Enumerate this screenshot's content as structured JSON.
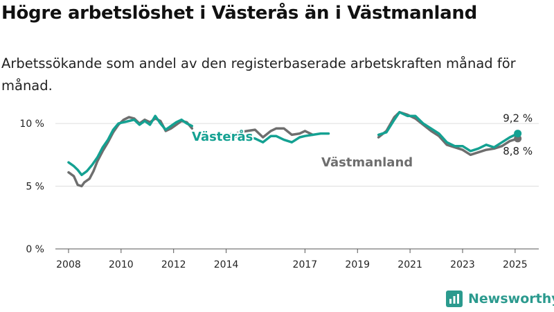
{
  "title": "Högre arbetslöshet i Västerås än i Västmanland",
  "subtitle": "Arbetssökande som andel av den registerbaserade arbetskraften månad för månad.",
  "brand": {
    "name": "Newsworthy",
    "icon": "bar-chart-logo-icon",
    "color": "#2b9a8e"
  },
  "chart_data": {
    "type": "line",
    "title": "",
    "xlabel": "",
    "ylabel": "",
    "ylim": [
      0,
      11
    ],
    "xlim": [
      2007.5,
      2025.9
    ],
    "yticks": [
      {
        "value": 0,
        "label": "0 %"
      },
      {
        "value": 5,
        "label": "5 %"
      },
      {
        "value": 10,
        "label": "10 %"
      }
    ],
    "xticks": [
      {
        "value": 2008,
        "label": "2008"
      },
      {
        "value": 2010,
        "label": "2010"
      },
      {
        "value": 2012,
        "label": "2012"
      },
      {
        "value": 2014,
        "label": "2014"
      },
      {
        "value": 2017,
        "label": "2017"
      },
      {
        "value": 2019,
        "label": "2019"
      },
      {
        "value": 2021,
        "label": "2021"
      },
      {
        "value": 2023,
        "label": "2023"
      },
      {
        "value": 2025,
        "label": "2025"
      }
    ],
    "grid": "horizontal",
    "series": [
      {
        "name": "Västmanland",
        "color": "#6e6e6e",
        "end_label": "8,8 %",
        "points": [
          [
            2008.0,
            6.1
          ],
          [
            2008.2,
            5.8
          ],
          [
            2008.35,
            5.1
          ],
          [
            2008.5,
            5.0
          ],
          [
            2008.6,
            5.3
          ],
          [
            2008.8,
            5.6
          ],
          [
            2008.95,
            6.2
          ],
          [
            2009.1,
            7.0
          ],
          [
            2009.3,
            7.8
          ],
          [
            2009.5,
            8.5
          ],
          [
            2009.7,
            9.3
          ],
          [
            2009.9,
            9.9
          ],
          [
            2010.1,
            10.3
          ],
          [
            2010.3,
            10.5
          ],
          [
            2010.5,
            10.4
          ],
          [
            2010.7,
            10.0
          ],
          [
            2010.9,
            10.3
          ],
          [
            2011.1,
            10.1
          ],
          [
            2011.3,
            10.4
          ],
          [
            2011.5,
            10.2
          ],
          [
            2011.7,
            9.4
          ],
          [
            2011.9,
            9.6
          ],
          [
            2012.1,
            9.9
          ],
          [
            2012.3,
            10.2
          ],
          [
            2012.5,
            10.1
          ],
          [
            2012.7,
            9.6
          ],
          [
            2014.2,
            9.0
          ],
          [
            2014.5,
            9.3
          ],
          [
            2014.8,
            9.4
          ],
          [
            2015.1,
            9.5
          ],
          [
            2015.4,
            8.9
          ],
          [
            2015.7,
            9.4
          ],
          [
            2015.9,
            9.6
          ],
          [
            2016.2,
            9.6
          ],
          [
            2016.5,
            9.1
          ],
          [
            2016.8,
            9.2
          ],
          [
            2017.0,
            9.4
          ],
          [
            2017.3,
            9.1
          ],
          [
            2019.8,
            8.9
          ],
          [
            2020.1,
            9.4
          ],
          [
            2020.4,
            10.5
          ],
          [
            2020.6,
            10.9
          ],
          [
            2020.9,
            10.7
          ],
          [
            2021.2,
            10.4
          ],
          [
            2021.5,
            9.9
          ],
          [
            2021.8,
            9.4
          ],
          [
            2022.1,
            9.0
          ],
          [
            2022.4,
            8.3
          ],
          [
            2022.7,
            8.1
          ],
          [
            2023.0,
            7.9
          ],
          [
            2023.3,
            7.5
          ],
          [
            2023.6,
            7.7
          ],
          [
            2023.9,
            7.9
          ],
          [
            2024.2,
            8.0
          ],
          [
            2024.5,
            8.2
          ],
          [
            2024.8,
            8.6
          ],
          [
            2025.1,
            8.8
          ]
        ]
      },
      {
        "name": "Västerås",
        "color": "#14a192",
        "end_label": "9,2 %",
        "points": [
          [
            2008.0,
            6.9
          ],
          [
            2008.2,
            6.6
          ],
          [
            2008.35,
            6.3
          ],
          [
            2008.5,
            5.9
          ],
          [
            2008.7,
            6.2
          ],
          [
            2008.9,
            6.7
          ],
          [
            2009.1,
            7.3
          ],
          [
            2009.3,
            8.1
          ],
          [
            2009.5,
            8.7
          ],
          [
            2009.7,
            9.5
          ],
          [
            2009.9,
            10.0
          ],
          [
            2010.1,
            10.1
          ],
          [
            2010.3,
            10.2
          ],
          [
            2010.5,
            10.3
          ],
          [
            2010.7,
            9.9
          ],
          [
            2010.9,
            10.2
          ],
          [
            2011.1,
            9.9
          ],
          [
            2011.3,
            10.6
          ],
          [
            2011.5,
            10.0
          ],
          [
            2011.7,
            9.5
          ],
          [
            2011.9,
            9.8
          ],
          [
            2012.1,
            10.1
          ],
          [
            2012.3,
            10.3
          ],
          [
            2012.5,
            10.0
          ],
          [
            2012.7,
            9.8
          ],
          [
            2014.2,
            9.2
          ],
          [
            2014.5,
            8.8
          ],
          [
            2014.8,
            8.9
          ],
          [
            2015.1,
            8.8
          ],
          [
            2015.4,
            8.5
          ],
          [
            2015.7,
            9.0
          ],
          [
            2015.9,
            9.0
          ],
          [
            2016.2,
            8.7
          ],
          [
            2016.5,
            8.5
          ],
          [
            2016.8,
            8.9
          ],
          [
            2017.0,
            9.0
          ],
          [
            2017.3,
            9.1
          ],
          [
            2017.6,
            9.2
          ],
          [
            2017.9,
            9.2
          ],
          [
            2019.8,
            9.1
          ],
          [
            2020.1,
            9.3
          ],
          [
            2020.4,
            10.3
          ],
          [
            2020.6,
            10.9
          ],
          [
            2020.9,
            10.6
          ],
          [
            2021.2,
            10.6
          ],
          [
            2021.5,
            10.0
          ],
          [
            2021.8,
            9.6
          ],
          [
            2022.1,
            9.2
          ],
          [
            2022.4,
            8.5
          ],
          [
            2022.7,
            8.2
          ],
          [
            2023.0,
            8.2
          ],
          [
            2023.3,
            7.8
          ],
          [
            2023.6,
            8.0
          ],
          [
            2023.9,
            8.3
          ],
          [
            2024.2,
            8.1
          ],
          [
            2024.5,
            8.5
          ],
          [
            2024.8,
            8.9
          ],
          [
            2025.1,
            9.2
          ]
        ]
      }
    ]
  }
}
